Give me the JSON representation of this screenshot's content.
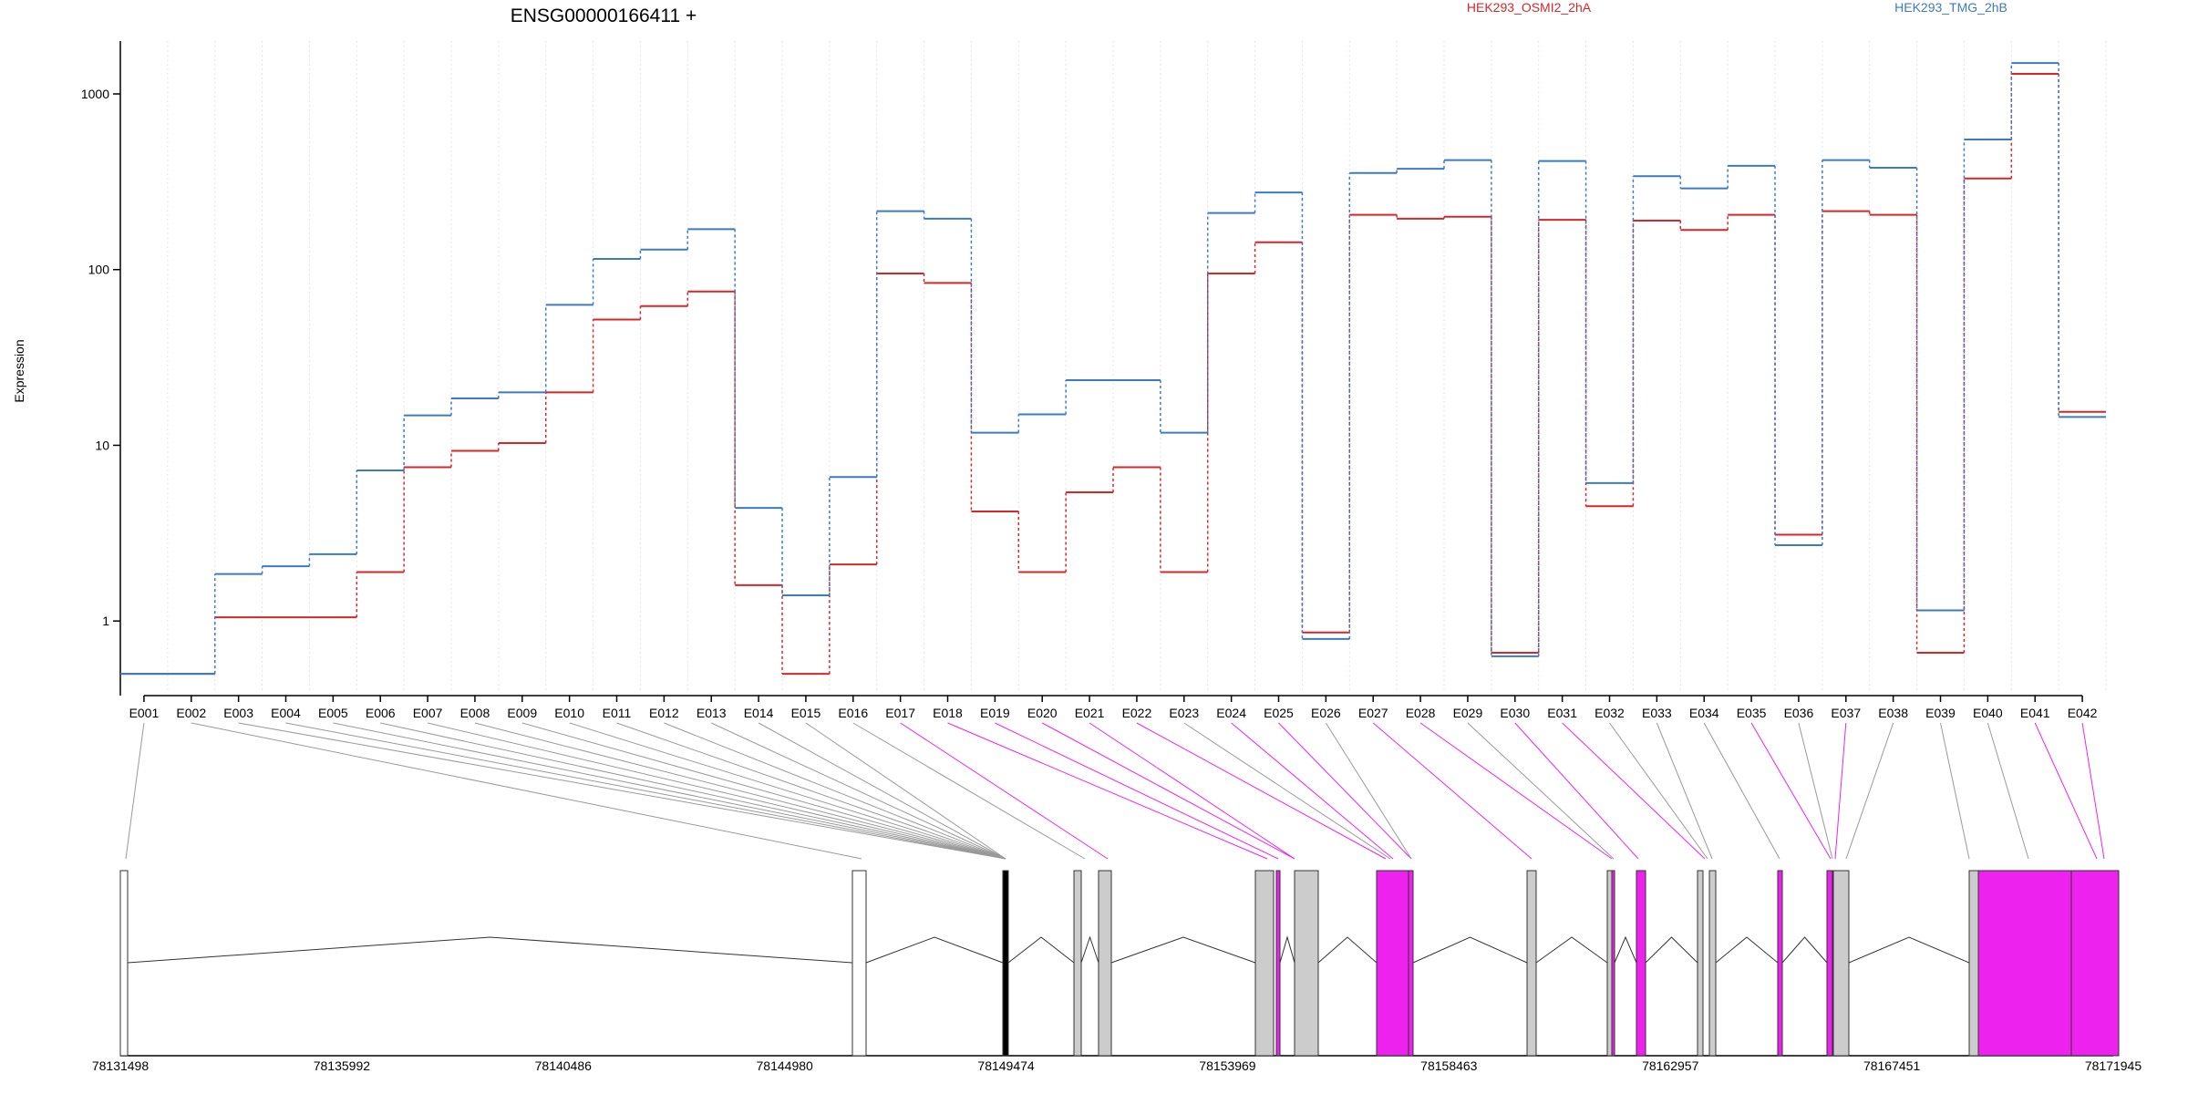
{
  "chart_data": {
    "type": "line",
    "title": "ENSG00000166411 +",
    "ylabel": "Expression",
    "xlabel": "",
    "yscale": "log",
    "ylim": [
      0.45,
      2000
    ],
    "yticks": [
      1,
      10,
      100,
      1000
    ],
    "yticklabels": [
      "1",
      "10",
      "100",
      "1000"
    ],
    "grid": "vertical dotted lines at exon boundaries",
    "legend_placement": "top",
    "categories": [
      "E001",
      "E002",
      "E003",
      "E004",
      "E005",
      "E006",
      "E007",
      "E008",
      "E009",
      "E010",
      "E011",
      "E012",
      "E013",
      "E014",
      "E015",
      "E016",
      "E017",
      "E018",
      "E019",
      "E020",
      "E021",
      "E022",
      "E023",
      "E024",
      "E025",
      "E026",
      "E027",
      "E028",
      "E029",
      "E030",
      "E031",
      "E032",
      "E033",
      "E034",
      "E035",
      "E036",
      "E037",
      "E038",
      "E039",
      "E040",
      "E041",
      "E042"
    ],
    "series": [
      {
        "name": "HEK293_OSMI2_2hA",
        "color": "#d62728",
        "values": [
          0.5,
          0.5,
          1.05,
          1.05,
          1.05,
          1.9,
          7.5,
          9.3,
          10.3,
          20,
          52,
          62,
          75,
          1.6,
          0.5,
          2.1,
          95,
          84,
          4.2,
          1.9,
          5.4,
          7.5,
          1.9,
          95,
          143,
          0.86,
          205,
          195,
          200,
          0.66,
          192,
          4.5,
          190,
          168,
          205,
          3.1,
          215,
          205,
          0.66,
          330,
          1300,
          15.5
        ]
      },
      {
        "name": "HEK293_TMG_2hB",
        "color": "#3b7bbf",
        "values": [
          0.5,
          0.5,
          1.85,
          2.05,
          2.4,
          7.2,
          14.8,
          18.5,
          20,
          63,
          115,
          130,
          170,
          4.4,
          1.4,
          6.6,
          215,
          195,
          11.8,
          15,
          23.5,
          23.5,
          11.8,
          210,
          275,
          0.79,
          355,
          375,
          420,
          0.63,
          415,
          6.1,
          340,
          290,
          390,
          2.7,
          420,
          380,
          1.15,
          550,
          1500,
          14.5
        ]
      }
    ],
    "gene_model": {
      "xaxis_ticklabels": [
        "78131498",
        "78135992",
        "78140486",
        "78144980",
        "78149474",
        "78153969",
        "78158463",
        "78162957",
        "78167451",
        "78171945"
      ],
      "highlight_color": "#ee22ee",
      "exon_fill_color": "#cccccc",
      "highlighted_exons": [
        "E017",
        "E018",
        "E019",
        "E020",
        "E021",
        "E022",
        "E024",
        "E025",
        "E027",
        "E028",
        "E030",
        "E031",
        "E035",
        "E037",
        "E041",
        "E042"
      ]
    }
  }
}
